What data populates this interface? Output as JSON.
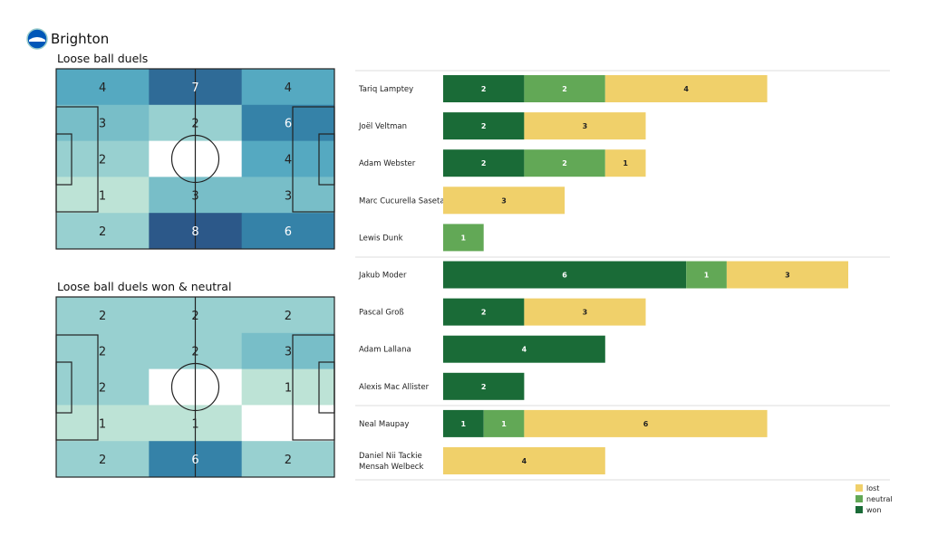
{
  "team": "Brighton",
  "logo_icon": "brighton-crest-icon",
  "chart_data": [
    {
      "type": "heatmap",
      "title": "Loose ball duels",
      "rows": [
        [
          4,
          7,
          4
        ],
        [
          3,
          2,
          6
        ],
        [
          2,
          0,
          4
        ],
        [
          1,
          3,
          3
        ],
        [
          2,
          8,
          6
        ]
      ],
      "zero_label_shown": false
    },
    {
      "type": "heatmap",
      "title": "Loose ball duels won & neutral",
      "rows": [
        [
          2,
          2,
          2
        ],
        [
          2,
          2,
          3
        ],
        [
          2,
          0,
          1
        ],
        [
          1,
          1,
          0
        ],
        [
          2,
          6,
          2
        ]
      ],
      "zero_label_shown": false
    },
    {
      "type": "bar",
      "orientation": "horizontal",
      "stacked": true,
      "categories": [
        "Tariq Lamptey",
        "Joël Veltman",
        "Adam Webster",
        "Marc Cucurella Saseta",
        "Lewis Dunk",
        "Jakub Moder",
        "Pascal Groß",
        "Adam Lallana",
        "Alexis Mac Allister",
        "Neal Maupay",
        "Daniel Nii Tackie Mensah Welbeck"
      ],
      "series": [
        {
          "name": "won",
          "color": "#1a6b37",
          "values": [
            2,
            2,
            2,
            0,
            0,
            6,
            2,
            4,
            2,
            1,
            0
          ]
        },
        {
          "name": "neutral",
          "color": "#62a856",
          "values": [
            2,
            0,
            2,
            0,
            1,
            1,
            0,
            0,
            0,
            1,
            0
          ]
        },
        {
          "name": "lost",
          "color": "#f0d06a",
          "values": [
            4,
            3,
            1,
            3,
            0,
            3,
            3,
            0,
            0,
            6,
            4
          ]
        }
      ],
      "legend": [
        "lost",
        "neutral",
        "won"
      ],
      "legend_placement": "bottom-right"
    }
  ]
}
